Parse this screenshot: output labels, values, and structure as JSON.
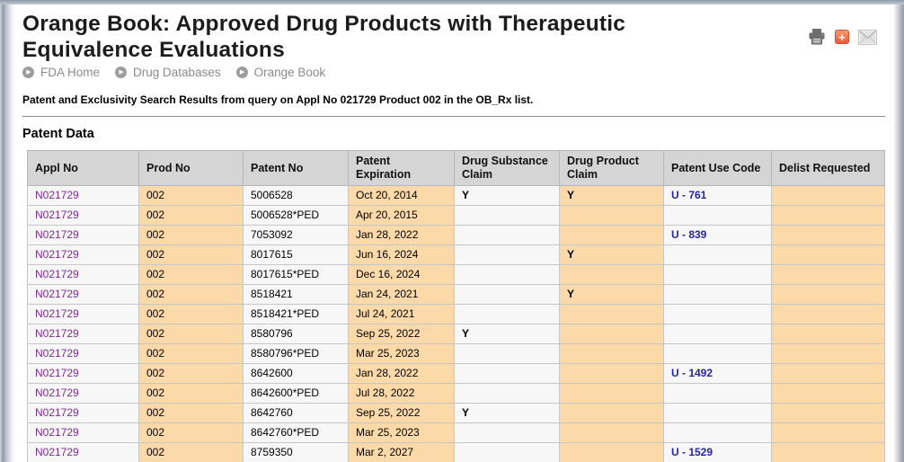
{
  "page": {
    "title": "Orange Book: Approved Drug Products with Therapeutic Equivalence Evaluations",
    "breadcrumb": [
      "FDA Home",
      "Drug Databases",
      "Orange Book"
    ],
    "query_summary": "Patent and Exclusivity Search Results from query on Appl No 021729 Product 002 in the OB_Rx list.",
    "section_title": "Patent Data"
  },
  "icons": {
    "breadcrumb_arrow": "▶",
    "share_plus": "+"
  },
  "colors": {
    "column_highlight": "#fcd9a9",
    "header_bg": "#d5d5d5",
    "appl_link": "#7c2a90",
    "use_code_link": "#26269c",
    "share_icon": "#ec5938"
  },
  "table": {
    "columns": [
      "Appl No",
      "Prod No",
      "Patent No",
      "Patent Expiration",
      "Drug Substance Claim",
      "Drug Product Claim",
      "Patent Use Code",
      "Delist Requested"
    ],
    "rows": [
      {
        "appl_no": "N021729",
        "prod_no": "002",
        "patent_no": "5006528",
        "patent_expiration": "Oct 20, 2014",
        "drug_substance_claim": "Y",
        "drug_product_claim": "Y",
        "patent_use_code": "U - 761",
        "delist_requested": ""
      },
      {
        "appl_no": "N021729",
        "prod_no": "002",
        "patent_no": "5006528*PED",
        "patent_expiration": "Apr 20, 2015",
        "drug_substance_claim": "",
        "drug_product_claim": "",
        "patent_use_code": "",
        "delist_requested": ""
      },
      {
        "appl_no": "N021729",
        "prod_no": "002",
        "patent_no": "7053092",
        "patent_expiration": "Jan 28, 2022",
        "drug_substance_claim": "",
        "drug_product_claim": "",
        "patent_use_code": "U - 839",
        "delist_requested": ""
      },
      {
        "appl_no": "N021729",
        "prod_no": "002",
        "patent_no": "8017615",
        "patent_expiration": "Jun 16, 2024",
        "drug_substance_claim": "",
        "drug_product_claim": "Y",
        "patent_use_code": "",
        "delist_requested": ""
      },
      {
        "appl_no": "N021729",
        "prod_no": "002",
        "patent_no": "8017615*PED",
        "patent_expiration": "Dec 16, 2024",
        "drug_substance_claim": "",
        "drug_product_claim": "",
        "patent_use_code": "",
        "delist_requested": ""
      },
      {
        "appl_no": "N021729",
        "prod_no": "002",
        "patent_no": "8518421",
        "patent_expiration": "Jan 24, 2021",
        "drug_substance_claim": "",
        "drug_product_claim": "Y",
        "patent_use_code": "",
        "delist_requested": ""
      },
      {
        "appl_no": "N021729",
        "prod_no": "002",
        "patent_no": "8518421*PED",
        "patent_expiration": "Jul 24, 2021",
        "drug_substance_claim": "",
        "drug_product_claim": "",
        "patent_use_code": "",
        "delist_requested": ""
      },
      {
        "appl_no": "N021729",
        "prod_no": "002",
        "patent_no": "8580796",
        "patent_expiration": "Sep 25, 2022",
        "drug_substance_claim": "Y",
        "drug_product_claim": "",
        "patent_use_code": "",
        "delist_requested": ""
      },
      {
        "appl_no": "N021729",
        "prod_no": "002",
        "patent_no": "8580796*PED",
        "patent_expiration": "Mar 25, 2023",
        "drug_substance_claim": "",
        "drug_product_claim": "",
        "patent_use_code": "",
        "delist_requested": ""
      },
      {
        "appl_no": "N021729",
        "prod_no": "002",
        "patent_no": "8642600",
        "patent_expiration": "Jan 28, 2022",
        "drug_substance_claim": "",
        "drug_product_claim": "",
        "patent_use_code": "U - 1492",
        "delist_requested": ""
      },
      {
        "appl_no": "N021729",
        "prod_no": "002",
        "patent_no": "8642600*PED",
        "patent_expiration": "Jul 28, 2022",
        "drug_substance_claim": "",
        "drug_product_claim": "",
        "patent_use_code": "",
        "delist_requested": ""
      },
      {
        "appl_no": "N021729",
        "prod_no": "002",
        "patent_no": "8642760",
        "patent_expiration": "Sep 25, 2022",
        "drug_substance_claim": "Y",
        "drug_product_claim": "",
        "patent_use_code": "",
        "delist_requested": ""
      },
      {
        "appl_no": "N021729",
        "prod_no": "002",
        "patent_no": "8642760*PED",
        "patent_expiration": "Mar 25, 2023",
        "drug_substance_claim": "",
        "drug_product_claim": "",
        "patent_use_code": "",
        "delist_requested": ""
      },
      {
        "appl_no": "N021729",
        "prod_no": "002",
        "patent_no": "8759350",
        "patent_expiration": "Mar 2, 2027",
        "drug_substance_claim": "",
        "drug_product_claim": "",
        "patent_use_code": "U - 1529",
        "delist_requested": ""
      }
    ]
  }
}
